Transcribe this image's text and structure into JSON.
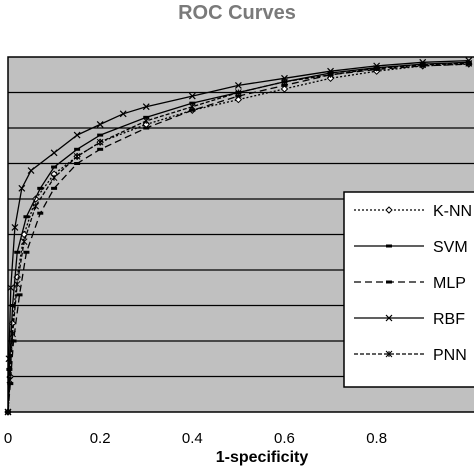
{
  "chart_data": {
    "type": "line",
    "title": "ROC Curves",
    "xlabel": "1-specificity",
    "ylabel": "",
    "xlim": [
      0,
      1
    ],
    "ylim": [
      0,
      1
    ],
    "x_ticks": [
      "0",
      "0.2",
      "0.4",
      "0.6",
      "0.8"
    ],
    "grid": "horizontal",
    "plot_background": "#c0c0c0",
    "legend_position": "right",
    "series": [
      {
        "name": "K-NN",
        "line": "dotted",
        "marker": "diamond",
        "points": [
          [
            0,
            0
          ],
          [
            0.005,
            0.1
          ],
          [
            0.01,
            0.25
          ],
          [
            0.02,
            0.38
          ],
          [
            0.035,
            0.5
          ],
          [
            0.06,
            0.6
          ],
          [
            0.1,
            0.67
          ],
          [
            0.15,
            0.72
          ],
          [
            0.2,
            0.76
          ],
          [
            0.3,
            0.81
          ],
          [
            0.4,
            0.85
          ],
          [
            0.5,
            0.88
          ],
          [
            0.6,
            0.91
          ],
          [
            0.7,
            0.94
          ],
          [
            0.8,
            0.96
          ],
          [
            0.9,
            0.975
          ],
          [
            1,
            0.98
          ]
        ]
      },
      {
        "name": "SVM",
        "line": "solid",
        "marker": "dash",
        "points": [
          [
            0,
            0
          ],
          [
            0.003,
            0.12
          ],
          [
            0.01,
            0.3
          ],
          [
            0.02,
            0.45
          ],
          [
            0.04,
            0.55
          ],
          [
            0.07,
            0.63
          ],
          [
            0.1,
            0.69
          ],
          [
            0.15,
            0.74
          ],
          [
            0.2,
            0.78
          ],
          [
            0.3,
            0.83
          ],
          [
            0.4,
            0.87
          ],
          [
            0.5,
            0.9
          ],
          [
            0.6,
            0.93
          ],
          [
            0.7,
            0.955
          ],
          [
            0.8,
            0.97
          ],
          [
            0.9,
            0.98
          ],
          [
            1,
            0.985
          ]
        ]
      },
      {
        "name": "MLP",
        "line": "dashed",
        "marker": "dash",
        "points": [
          [
            0,
            0
          ],
          [
            0.005,
            0.08
          ],
          [
            0.012,
            0.2
          ],
          [
            0.025,
            0.33
          ],
          [
            0.04,
            0.45
          ],
          [
            0.07,
            0.56
          ],
          [
            0.1,
            0.63
          ],
          [
            0.15,
            0.7
          ],
          [
            0.2,
            0.74
          ],
          [
            0.3,
            0.8
          ],
          [
            0.4,
            0.85
          ],
          [
            0.5,
            0.89
          ],
          [
            0.6,
            0.92
          ],
          [
            0.7,
            0.95
          ],
          [
            0.8,
            0.965
          ],
          [
            0.9,
            0.975
          ],
          [
            1,
            0.98
          ]
        ]
      },
      {
        "name": "RBF",
        "line": "solid",
        "marker": "x",
        "points": [
          [
            0,
            0
          ],
          [
            0.002,
            0.15
          ],
          [
            0.006,
            0.35
          ],
          [
            0.015,
            0.52
          ],
          [
            0.03,
            0.63
          ],
          [
            0.05,
            0.68
          ],
          [
            0.1,
            0.73
          ],
          [
            0.15,
            0.78
          ],
          [
            0.2,
            0.81
          ],
          [
            0.25,
            0.84
          ],
          [
            0.3,
            0.86
          ],
          [
            0.4,
            0.89
          ],
          [
            0.5,
            0.92
          ],
          [
            0.6,
            0.94
          ],
          [
            0.7,
            0.96
          ],
          [
            0.8,
            0.975
          ],
          [
            0.9,
            0.985
          ],
          [
            1,
            0.99
          ]
        ]
      },
      {
        "name": "PNN",
        "line": "short-dashed",
        "marker": "asterisk",
        "points": [
          [
            0,
            0
          ],
          [
            0.004,
            0.09
          ],
          [
            0.01,
            0.22
          ],
          [
            0.02,
            0.36
          ],
          [
            0.035,
            0.48
          ],
          [
            0.06,
            0.58
          ],
          [
            0.1,
            0.66
          ],
          [
            0.15,
            0.72
          ],
          [
            0.2,
            0.76
          ],
          [
            0.3,
            0.82
          ],
          [
            0.4,
            0.86
          ],
          [
            0.5,
            0.9
          ],
          [
            0.6,
            0.93
          ],
          [
            0.7,
            0.95
          ],
          [
            0.8,
            0.968
          ],
          [
            0.9,
            0.978
          ],
          [
            1,
            0.982
          ]
        ]
      }
    ]
  }
}
